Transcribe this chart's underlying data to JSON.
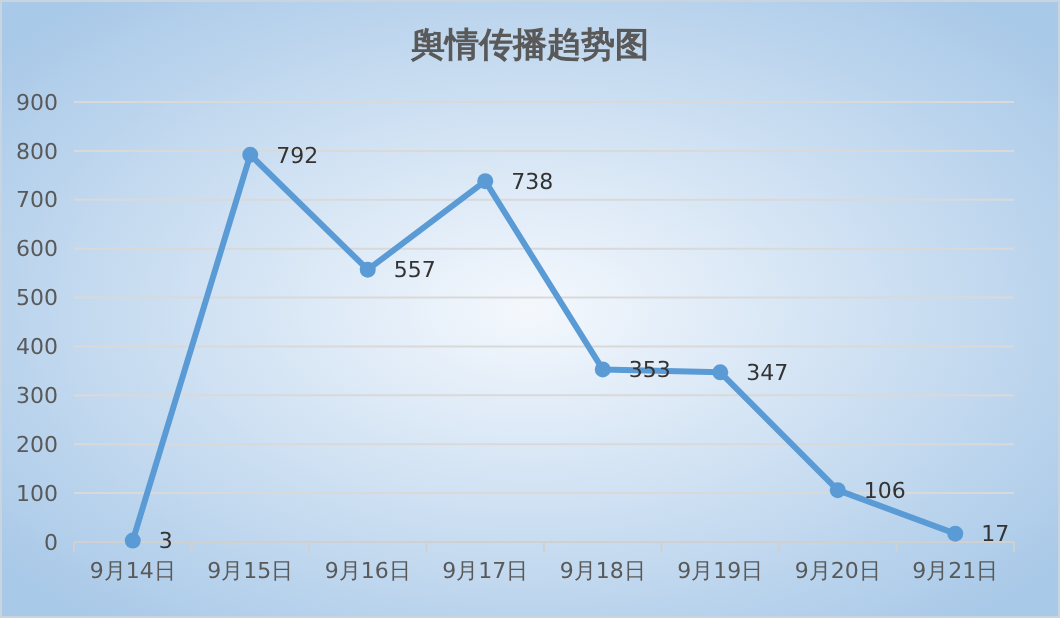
{
  "chart_data": {
    "type": "line",
    "title": "舆情传播趋势图",
    "categories": [
      "9月14日",
      "9月15日",
      "9月16日",
      "9月17日",
      "9月18日",
      "9月19日",
      "9月20日",
      "9月21日"
    ],
    "series": [
      {
        "color": "#5b9bd5",
        "values": [
          3,
          792,
          557,
          738,
          353,
          347,
          106,
          17
        ]
      }
    ],
    "ylim": [
      0,
      900
    ],
    "yticks": [
      0,
      100,
      200,
      300,
      400,
      500,
      600,
      700,
      800,
      900
    ],
    "grid": "y",
    "marker": "circle",
    "data_labels": true
  }
}
